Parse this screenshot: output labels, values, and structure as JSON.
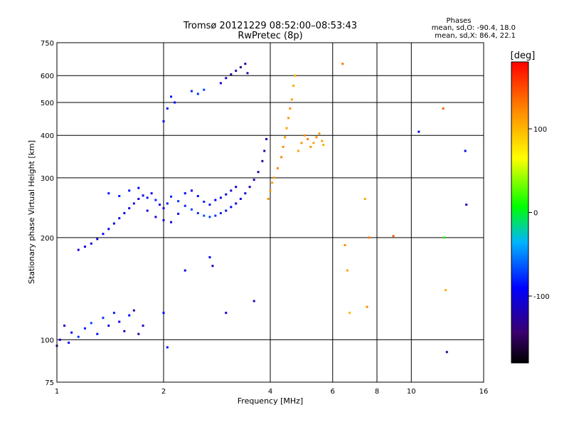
{
  "chart_data": {
    "type": "scatter",
    "title": "Tromsø 20121229 08:52:00–08:53:43",
    "subtitle": "RwPretec (8p)",
    "xlabel": "Frequency [MHz]",
    "ylabel": "Stationary phase Virtual Height [km]",
    "x_scale": "log",
    "y_scale": "log",
    "xlim": [
      1,
      16
    ],
    "ylim": [
      75,
      750
    ],
    "x_ticks": [
      1,
      2,
      4,
      6,
      8,
      10,
      16
    ],
    "x_tick_labels": [
      "1",
      "2",
      "4",
      "6",
      "8",
      "10",
      "16"
    ],
    "x_grid": [
      2,
      4,
      6,
      8,
      10
    ],
    "y_ticks": [
      75,
      100,
      200,
      300,
      400,
      500,
      600,
      750
    ],
    "y_tick_labels": [
      "75",
      "100",
      "200",
      "300",
      "400",
      "500",
      "600",
      "750"
    ],
    "y_grid": [
      100,
      200,
      300,
      400,
      500,
      600
    ],
    "grid": true,
    "stats": {
      "heading": "Phases",
      "line_o": "mean, sd,O: -90.4, 18.0",
      "line_x": "mean, sd,X:  86.4, 22.1"
    },
    "colorbar": {
      "label": "[deg]",
      "range": [
        -180,
        180
      ],
      "ticks": [
        100,
        0,
        -100
      ],
      "tick_labels": [
        "100",
        "0",
        "-100"
      ]
    },
    "series": [
      {
        "points": [
          [
            1.0,
            96,
            -110
          ],
          [
            1.02,
            100,
            -105
          ],
          [
            1.05,
            110,
            -100
          ],
          [
            1.08,
            98,
            -95
          ],
          [
            1.1,
            105,
            -90
          ],
          [
            1.15,
            102,
            -75
          ],
          [
            1.2,
            108,
            -80
          ],
          [
            1.25,
            112,
            -70
          ],
          [
            1.3,
            104,
            -85
          ],
          [
            1.35,
            116,
            -75
          ],
          [
            1.4,
            110,
            -95
          ],
          [
            1.45,
            120,
            -80
          ],
          [
            1.5,
            113,
            -100
          ],
          [
            1.55,
            106,
            -110
          ],
          [
            1.6,
            118,
            -90
          ],
          [
            1.65,
            122,
            -115
          ],
          [
            1.7,
            104,
            -120
          ],
          [
            1.75,
            110,
            -105
          ],
          [
            1.15,
            184,
            -105
          ],
          [
            1.2,
            188,
            -100
          ],
          [
            1.25,
            192,
            -95
          ],
          [
            1.3,
            198,
            -100
          ],
          [
            1.35,
            205,
            -90
          ],
          [
            1.4,
            212,
            -95
          ],
          [
            1.45,
            220,
            -100
          ],
          [
            1.5,
            228,
            -105
          ],
          [
            1.55,
            236,
            -90
          ],
          [
            1.6,
            244,
            -95
          ],
          [
            1.65,
            252,
            -85
          ],
          [
            1.7,
            260,
            -100
          ],
          [
            1.75,
            266,
            -90
          ],
          [
            1.8,
            262,
            -85
          ],
          [
            1.85,
            270,
            -95
          ],
          [
            1.9,
            258,
            -80
          ],
          [
            1.95,
            250,
            -90
          ],
          [
            2.0,
            244,
            -95
          ],
          [
            2.05,
            252,
            -85
          ],
          [
            2.1,
            264,
            -80
          ],
          [
            2.2,
            256,
            -75
          ],
          [
            2.3,
            248,
            -80
          ],
          [
            2.4,
            242,
            -70
          ],
          [
            2.5,
            236,
            -75
          ],
          [
            2.6,
            232,
            -65
          ],
          [
            2.7,
            230,
            -70
          ],
          [
            2.8,
            232,
            -75
          ],
          [
            2.9,
            236,
            -80
          ],
          [
            3.0,
            240,
            -85
          ],
          [
            3.1,
            246,
            -90
          ],
          [
            3.2,
            252,
            -95
          ],
          [
            3.3,
            260,
            -100
          ],
          [
            3.4,
            270,
            -105
          ],
          [
            3.5,
            282,
            -110
          ],
          [
            3.6,
            296,
            -115
          ],
          [
            3.7,
            312,
            -120
          ],
          [
            3.8,
            336,
            -125
          ],
          [
            3.85,
            360,
            -120
          ],
          [
            3.9,
            390,
            -115
          ],
          [
            1.4,
            270,
            -85
          ],
          [
            1.5,
            265,
            -80
          ],
          [
            1.6,
            275,
            -85
          ],
          [
            1.7,
            280,
            -95
          ],
          [
            1.8,
            240,
            -100
          ],
          [
            1.9,
            230,
            -105
          ],
          [
            2.0,
            225,
            -110
          ],
          [
            2.1,
            222,
            -105
          ],
          [
            2.2,
            235,
            -100
          ],
          [
            2.3,
            270,
            -95
          ],
          [
            2.4,
            275,
            -90
          ],
          [
            2.5,
            265,
            -85
          ],
          [
            2.6,
            255,
            -80
          ],
          [
            2.7,
            250,
            -85
          ],
          [
            2.8,
            258,
            -90
          ],
          [
            2.9,
            262,
            -95
          ],
          [
            3.0,
            268,
            -100
          ],
          [
            3.1,
            275,
            -105
          ],
          [
            3.2,
            282,
            -110
          ],
          [
            2.0,
            440,
            -100
          ],
          [
            2.05,
            480,
            -95
          ],
          [
            2.1,
            520,
            -85
          ],
          [
            2.15,
            500,
            -90
          ],
          [
            2.4,
            540,
            -80
          ],
          [
            2.5,
            530,
            -75
          ],
          [
            2.6,
            545,
            -70
          ],
          [
            2.9,
            570,
            -110
          ],
          [
            3.0,
            590,
            -115
          ],
          [
            3.1,
            605,
            -120
          ],
          [
            3.2,
            620,
            -125
          ],
          [
            3.3,
            635,
            -130
          ],
          [
            3.4,
            650,
            -120
          ],
          [
            3.45,
            610,
            -125
          ],
          [
            3.95,
            260,
            120
          ],
          [
            4.0,
            275,
            115
          ],
          [
            4.05,
            290,
            110
          ],
          [
            4.1,
            300,
            115
          ],
          [
            4.2,
            320,
            120
          ],
          [
            4.3,
            345,
            125
          ],
          [
            4.35,
            370,
            120
          ],
          [
            4.4,
            395,
            115
          ],
          [
            4.45,
            420,
            110
          ],
          [
            4.5,
            450,
            115
          ],
          [
            4.55,
            480,
            120
          ],
          [
            4.6,
            510,
            110
          ],
          [
            4.65,
            560,
            105
          ],
          [
            4.7,
            600,
            100
          ],
          [
            4.8,
            360,
            110
          ],
          [
            4.9,
            380,
            115
          ],
          [
            5.0,
            400,
            120
          ],
          [
            5.1,
            390,
            125
          ],
          [
            5.2,
            370,
            115
          ],
          [
            5.3,
            380,
            110
          ],
          [
            5.4,
            395,
            120
          ],
          [
            5.5,
            405,
            115
          ],
          [
            5.6,
            385,
            110
          ],
          [
            5.65,
            375,
            105
          ],
          [
            2.0,
            120,
            -90
          ],
          [
            2.05,
            95,
            -85
          ],
          [
            2.3,
            160,
            -100
          ],
          [
            2.7,
            175,
            -95
          ],
          [
            2.75,
            165,
            -110
          ],
          [
            3.0,
            120,
            -105
          ],
          [
            3.6,
            130,
            -120
          ],
          [
            6.4,
            650,
            130
          ],
          [
            6.5,
            190,
            120
          ],
          [
            6.6,
            160,
            110
          ],
          [
            6.7,
            120,
            100
          ],
          [
            7.4,
            260,
            110
          ],
          [
            7.6,
            200,
            130
          ],
          [
            7.5,
            125,
            120
          ],
          [
            8.9,
            202,
            140
          ],
          [
            10.5,
            410,
            -100
          ],
          [
            12.3,
            480,
            140
          ],
          [
            12.4,
            200,
            10
          ],
          [
            12.5,
            140,
            105
          ],
          [
            12.6,
            92,
            -130
          ],
          [
            14.2,
            360,
            -95
          ],
          [
            14.3,
            250,
            -110
          ]
        ]
      }
    ]
  }
}
